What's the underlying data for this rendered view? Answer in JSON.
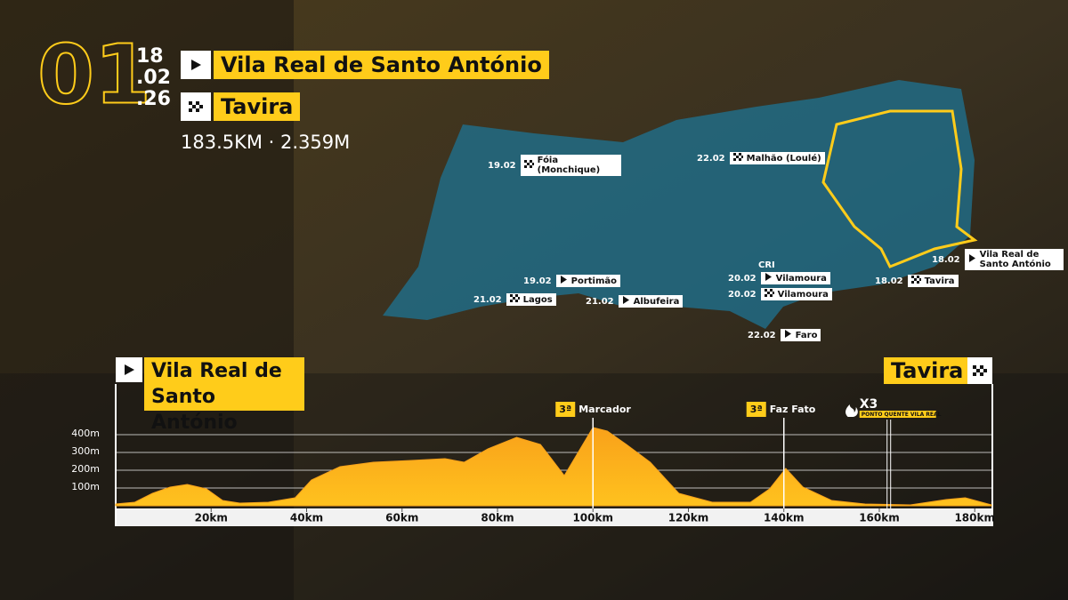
{
  "header": {
    "stage": "01",
    "date": [
      "18",
      ".02",
      ".26"
    ],
    "start": "Vila Real de Santo António",
    "finish": "Tavira",
    "stats": "183.5KM · 2.359M"
  },
  "map": {
    "stages": [
      {
        "date": "19.02",
        "label": "Fóia (Monchique)",
        "icon": "finish"
      },
      {
        "date": "22.02",
        "label": "Malhão (Loulé)",
        "icon": "finish"
      },
      {
        "date": "18.02",
        "label": "Vila Real de Santo António",
        "icon": "start"
      },
      {
        "date": "18.02",
        "label": "Tavira",
        "icon": "finish"
      },
      {
        "date": "20.02",
        "label": "Vilamoura",
        "icon": "start",
        "tag": "CRI"
      },
      {
        "date": "20.02",
        "label": "Vilamoura",
        "icon": "finish"
      },
      {
        "date": "19.02",
        "label": "Portimão",
        "icon": "start"
      },
      {
        "date": "21.02",
        "label": "Lagos",
        "icon": "finish"
      },
      {
        "date": "21.02",
        "label": "Albufeira",
        "icon": "start"
      },
      {
        "date": "22.02",
        "label": "Faro",
        "icon": "start"
      }
    ]
  },
  "chart_data": {
    "type": "area",
    "start_label": "Vila Real de Santo António",
    "finish_label": "Tavira",
    "color": "#f7a21b",
    "x": [
      0,
      4,
      7.7,
      11.4,
      15,
      19,
      22.4,
      26,
      32,
      37.6,
      41,
      47,
      54,
      62,
      69,
      73,
      78,
      84,
      89,
      94,
      100,
      103,
      107,
      112,
      118,
      125,
      133,
      137,
      140.4,
      144,
      150,
      157,
      166.5,
      174,
      178,
      183.5
    ],
    "values": [
      10,
      20,
      70,
      105,
      120,
      95,
      30,
      15,
      20,
      45,
      145,
      220,
      245,
      255,
      265,
      245,
      320,
      385,
      345,
      170,
      440,
      420,
      345,
      245,
      70,
      20,
      20,
      95,
      210,
      105,
      30,
      10,
      5,
      35,
      45,
      5
    ],
    "xlim": [
      0,
      183.5
    ],
    "ylim": [
      0,
      500
    ],
    "xticks": [
      {
        "value": 20,
        "label": "20km"
      },
      {
        "value": 40,
        "label": "40km"
      },
      {
        "value": 60,
        "label": "60km"
      },
      {
        "value": 80,
        "label": "80km"
      },
      {
        "value": 100,
        "label": "100km"
      },
      {
        "value": 120,
        "label": "120km"
      },
      {
        "value": 140,
        "label": "140km"
      },
      {
        "value": 160,
        "label": "160km"
      },
      {
        "value": 180,
        "label": "180km"
      }
    ],
    "yticks": [
      {
        "value": 100,
        "label": "100m"
      },
      {
        "value": 200,
        "label": "200m"
      },
      {
        "value": 300,
        "label": "300m"
      },
      {
        "value": 400,
        "label": "400m"
      }
    ],
    "grid": true,
    "markers": [
      {
        "x": 100,
        "category": "3ª",
        "label": "Marcador"
      },
      {
        "x": 140,
        "category": "3ª",
        "label": "Faz Fato"
      },
      {
        "x": 162,
        "label": "X3",
        "sub": "PONTO QUENTE VILA REAL"
      }
    ]
  }
}
